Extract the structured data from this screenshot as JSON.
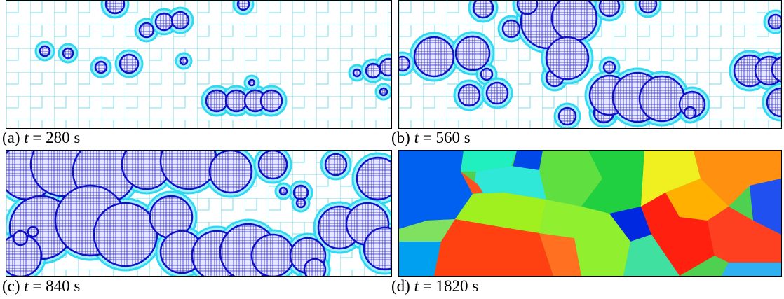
{
  "panels": [
    {
      "letter": "(a)",
      "symbol": "t",
      "rest": "= 280 s"
    },
    {
      "letter": "(b)",
      "symbol": "t",
      "rest": "= 560 s"
    },
    {
      "letter": "(c)",
      "symbol": "t",
      "rest": "= 840 s"
    },
    {
      "letter": "(d)",
      "symbol": "t",
      "rest": "= 1820 s"
    }
  ]
}
